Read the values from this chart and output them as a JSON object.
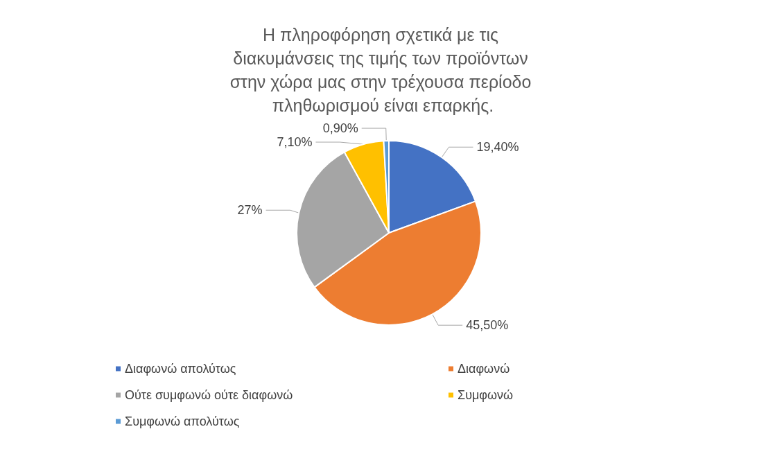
{
  "chart_data": {
    "type": "pie",
    "title": "Η πληροφόρηση σχετικά με τις διακυμάνσεις της τιμής των προϊόντων στην χώρα μας στην τρέχουσα περίοδο πληθωρισμού είναι επαρκής.",
    "categories": [
      "Διαφωνώ απολύτως",
      "Διαφωνώ",
      "Ούτε συμφωνώ ούτε διαφωνώ",
      "Συμφωνώ",
      "Συμφωνώ απολύτως"
    ],
    "values": [
      19.4,
      45.5,
      27,
      7.1,
      0.9
    ],
    "value_labels": [
      "19,40%",
      "45,50%",
      "27%",
      "7,10%",
      "0,90%"
    ],
    "colors": [
      "#4472c4",
      "#ed7d31",
      "#a5a5a5",
      "#ffc000",
      "#5b9bd5"
    ],
    "legend": "bottom"
  }
}
